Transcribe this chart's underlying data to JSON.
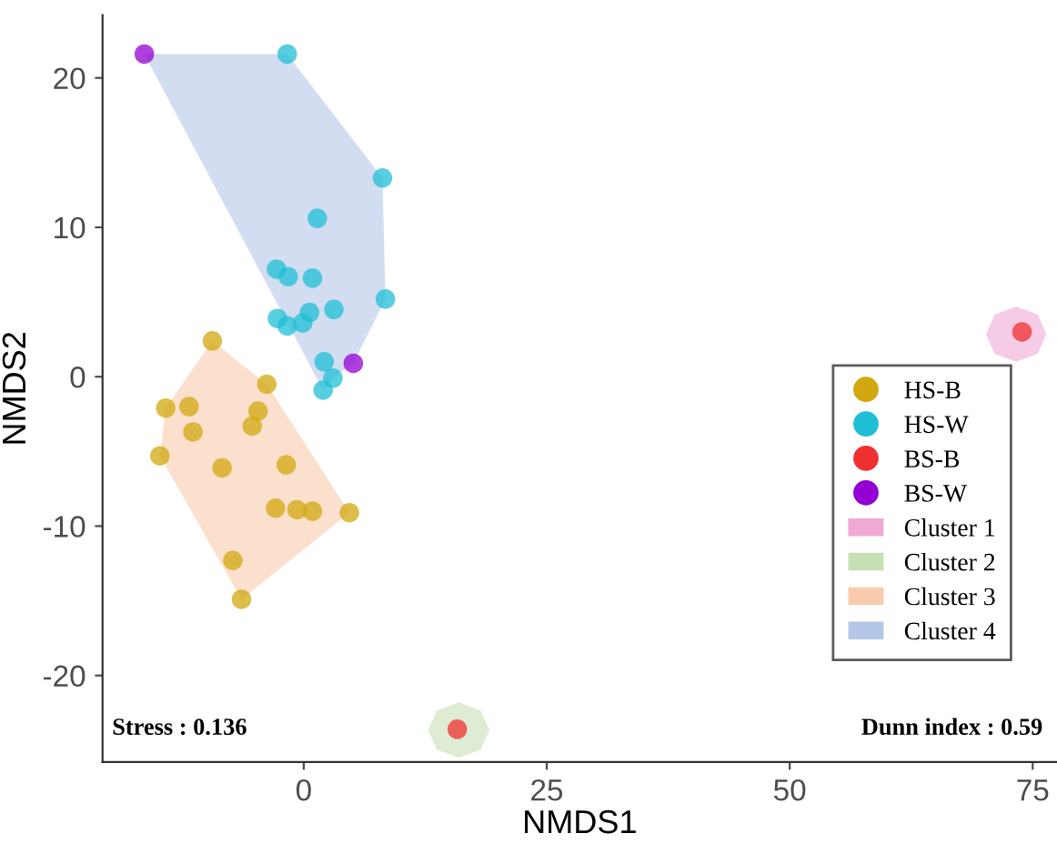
{
  "chart_data": {
    "type": "scatter",
    "xlabel": "NMDS1",
    "ylabel": "NMDS2",
    "xlim": [
      -20.7,
      77.5
    ],
    "ylim": [
      -25.8,
      24.2
    ],
    "xticks": [
      0,
      25,
      50,
      75
    ],
    "yticks": [
      -20,
      -10,
      0,
      10,
      20
    ],
    "grid": false,
    "legend": "bottom right",
    "series": [
      {
        "name": "HS-B",
        "color": "#d1a80f",
        "marker": "circle",
        "x": [
          -9.4,
          -3.8,
          -14.2,
          -11.8,
          -11.4,
          -4.7,
          -5.3,
          -14.8,
          -8.4,
          -1.8,
          -2.9,
          -0.7,
          0.9,
          4.7,
          -7.3,
          -6.4
        ],
        "values": [
          2.4,
          -0.5,
          -2.1,
          -2.0,
          -3.7,
          -2.3,
          -3.3,
          -5.3,
          -6.1,
          -5.9,
          -8.8,
          -8.9,
          -9.0,
          -9.1,
          -12.3,
          -14.9
        ]
      },
      {
        "name": "HS-W",
        "color": "#1fbfd6",
        "marker": "circle",
        "x": [
          -1.7,
          8.1,
          8.4,
          1.4,
          -2.8,
          -1.6,
          0.9,
          -2.7,
          -1.7,
          -0.1,
          0.6,
          3.1,
          2.1,
          3.0,
          2.0
        ],
        "values": [
          21.6,
          13.3,
          5.2,
          10.6,
          7.2,
          6.7,
          6.6,
          3.9,
          3.4,
          3.6,
          4.3,
          4.5,
          1.0,
          -0.1,
          -0.9
        ]
      },
      {
        "name": "BS-B",
        "color": "#f03030",
        "marker": "circle",
        "x": [
          73.9,
          15.8
        ],
        "values": [
          3.0,
          -23.6
        ]
      },
      {
        "name": "BS-W",
        "color": "#9400d3",
        "marker": "circle",
        "x": [
          -16.4,
          5.1
        ],
        "values": [
          21.6,
          0.9
        ]
      },
      {
        "name": "Cluster 1",
        "type": "area",
        "color": "#f0a8d4",
        "x": [
          76.4,
          75.5,
          73.3,
          71.1,
          70.2,
          71.1,
          73.3,
          75.5
        ],
        "values": [
          2.85,
          4.16,
          4.7,
          4.16,
          2.85,
          1.54,
          1.0,
          1.54
        ]
      },
      {
        "name": "Cluster 2",
        "type": "area",
        "color": "#c6e0b4",
        "x": [
          19.1,
          18.2,
          15.95,
          13.7,
          12.8,
          13.7,
          15.95,
          18.2
        ],
        "values": [
          -23.65,
          -22.34,
          -21.8,
          -22.34,
          -23.65,
          -24.96,
          -25.5,
          -24.96
        ]
      },
      {
        "name": "Cluster 3",
        "type": "area",
        "color": "#f8cbad",
        "x": [
          -9.4,
          -3.8,
          4.7,
          -6.4,
          -14.8,
          -14.2
        ],
        "values": [
          2.4,
          -0.5,
          -9.1,
          -14.9,
          -5.3,
          -2.1
        ]
      },
      {
        "name": "Cluster 4",
        "type": "area",
        "color": "#b4c7e7",
        "x": [
          -16.4,
          -1.7,
          8.1,
          8.4,
          5.1,
          3.0,
          2.0
        ],
        "values": [
          21.6,
          21.6,
          13.3,
          5.2,
          0.9,
          -0.1,
          -0.9
        ]
      }
    ],
    "annotations": [
      "Stress : 0.136",
      "Dunn index : 0.59"
    ]
  }
}
